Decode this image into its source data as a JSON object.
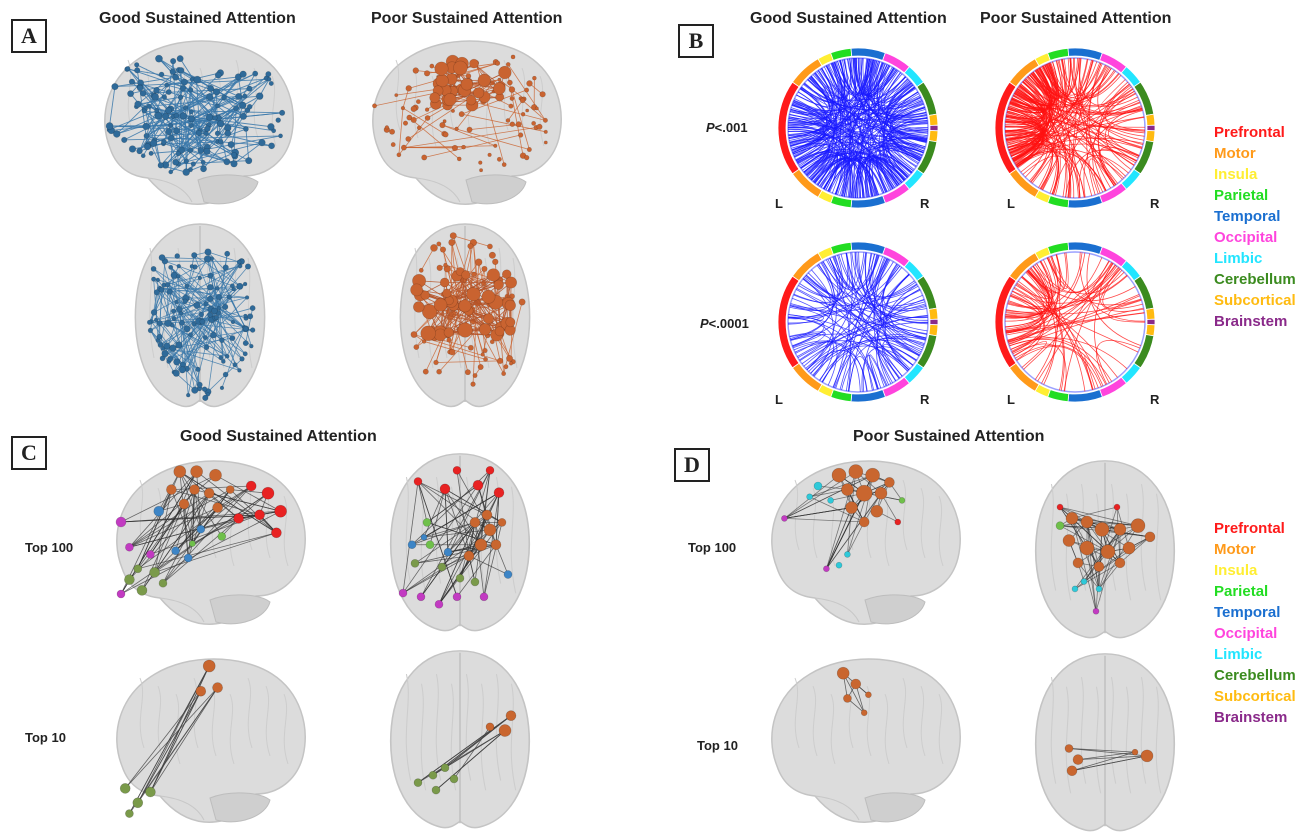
{
  "panels": {
    "a": {
      "label": "A",
      "col_titles": [
        "Good Sustained Attention",
        "Poor Sustained Attention"
      ],
      "colors": {
        "good": "#2f6a99",
        "poor": "#c96330"
      }
    },
    "b": {
      "label": "B",
      "col_titles": [
        "Good Sustained Attention",
        "Poor Sustained Attention"
      ],
      "thresholds": [
        {
          "prefix": "P",
          "suffix": "<.001"
        },
        {
          "prefix": "P",
          "suffix": "<.0001"
        }
      ],
      "side_left": "L",
      "side_right": "R",
      "colors": {
        "good": "#1a1aff",
        "poor": "#ff1111"
      }
    },
    "c": {
      "label": "C",
      "title": "Good Sustained Attention",
      "rows": [
        "Top 100",
        "Top 10"
      ]
    },
    "d": {
      "label": "D",
      "title": "Poor Sustained Attention",
      "rows": [
        "Top 100",
        "Top 10"
      ]
    }
  },
  "legend": [
    {
      "name": "Prefrontal",
      "color": "#ff1a1a"
    },
    {
      "name": "Motor",
      "color": "#ff9a1a"
    },
    {
      "name": "Insula",
      "color": "#ffee33"
    },
    {
      "name": "Parietal",
      "color": "#22dd22"
    },
    {
      "name": "Temporal",
      "color": "#1a6fd0"
    },
    {
      "name": "Occipital",
      "color": "#ff44dd"
    },
    {
      "name": "Limbic",
      "color": "#22e5ff"
    },
    {
      "name": "Cerebellum",
      "color": "#3b8b1f"
    },
    {
      "name": "Subcortical",
      "color": "#ffbb11"
    },
    {
      "name": "Brainstem",
      "color": "#8a2a8a"
    }
  ],
  "node_colors": {
    "prefrontal": "#e82222",
    "motor": "#c9662f",
    "parietal": "#6fc04a",
    "temporal": "#3d85c6",
    "occipital": "#c23bc2",
    "limbic": "#2ec9d9",
    "cerebellum": "#7a9a4a"
  }
}
